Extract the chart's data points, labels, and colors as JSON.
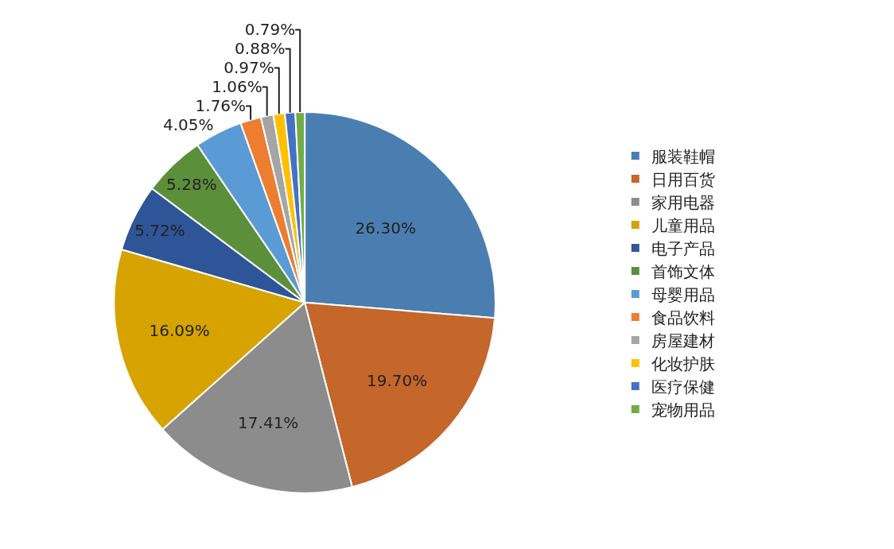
{
  "chart_data": {
    "type": "pie",
    "categories": [
      "服装鞋帽",
      "日用百货",
      "家用电器",
      "儿童用品",
      "电子产品",
      "首饰文体",
      "母婴用品",
      "食品饮料",
      "房屋建材",
      "化妆护肤",
      "医疗保健",
      "宠物用品"
    ],
    "values": [
      26.3,
      19.7,
      17.41,
      16.09,
      5.72,
      5.28,
      4.05,
      1.76,
      1.06,
      0.97,
      0.88,
      0.79
    ],
    "colors": [
      "#4a7eb0",
      "#c5662a",
      "#8c8c8c",
      "#d6a300",
      "#2e5597",
      "#5b8f3a",
      "#5b9bd5",
      "#ed7d31",
      "#a5a5a5",
      "#ffc000",
      "#4472c4",
      "#70ad47"
    ],
    "value_labels": [
      "26.30%",
      "19.70%",
      "17.41%",
      "16.09%",
      "5.72%",
      "5.28%",
      "4.05%",
      "1.76%",
      "1.06%",
      "0.97%",
      "0.88%",
      "0.79%"
    ],
    "legend": "right"
  }
}
